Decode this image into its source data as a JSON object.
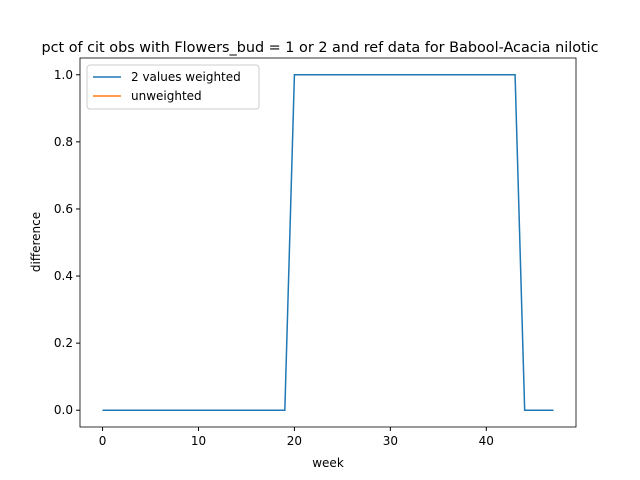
{
  "chart_data": {
    "type": "line",
    "title": "pct of cit obs with Flowers_bud = 1 or 2 and ref data for Babool-Acacia nilotic",
    "xlabel": "week",
    "ylabel": "difference",
    "x": [
      0,
      1,
      2,
      3,
      4,
      5,
      6,
      7,
      8,
      9,
      10,
      11,
      12,
      13,
      14,
      15,
      16,
      17,
      18,
      19,
      20,
      21,
      22,
      23,
      24,
      25,
      26,
      27,
      28,
      29,
      30,
      31,
      32,
      33,
      34,
      35,
      36,
      37,
      38,
      39,
      40,
      41,
      42,
      43,
      44,
      45,
      46,
      47
    ],
    "series": [
      {
        "name": "2 values weighted",
        "color": "#1f77b4",
        "values": [
          0,
          0,
          0,
          0,
          0,
          0,
          0,
          0,
          0,
          0,
          0,
          0,
          0,
          0,
          0,
          0,
          0,
          0,
          0,
          0,
          1,
          1,
          1,
          1,
          1,
          1,
          1,
          1,
          1,
          1,
          1,
          1,
          1,
          1,
          1,
          1,
          1,
          1,
          1,
          1,
          1,
          1,
          1,
          1,
          0,
          0,
          0,
          0
        ]
      },
      {
        "name": "unweighted",
        "color": "#ff7f0e",
        "values": [
          null,
          null,
          null,
          null,
          null,
          null,
          null,
          null,
          null,
          null,
          null,
          null,
          null,
          null,
          null,
          null,
          null,
          null,
          null,
          null,
          null,
          null,
          null,
          null,
          null,
          null,
          null,
          null,
          null,
          null,
          null,
          null,
          null,
          null,
          null,
          null,
          null,
          null,
          null,
          null,
          null,
          null,
          null,
          null,
          null,
          null,
          null,
          null
        ]
      }
    ],
    "xlim": [
      -2.35,
      49.35
    ],
    "xticks": [
      0,
      10,
      20,
      30,
      40
    ],
    "ylim": [
      -0.05,
      1.05
    ],
    "yticks": [
      {
        "value": 0,
        "label": "0.0"
      },
      {
        "value": 0.2,
        "label": "0.2"
      },
      {
        "value": 0.4,
        "label": "0.4"
      },
      {
        "value": 0.6,
        "label": "0.6"
      },
      {
        "value": 0.8,
        "label": "0.8"
      },
      {
        "value": 1,
        "label": "1.0"
      }
    ],
    "legend": "upper left",
    "grid": false
  }
}
